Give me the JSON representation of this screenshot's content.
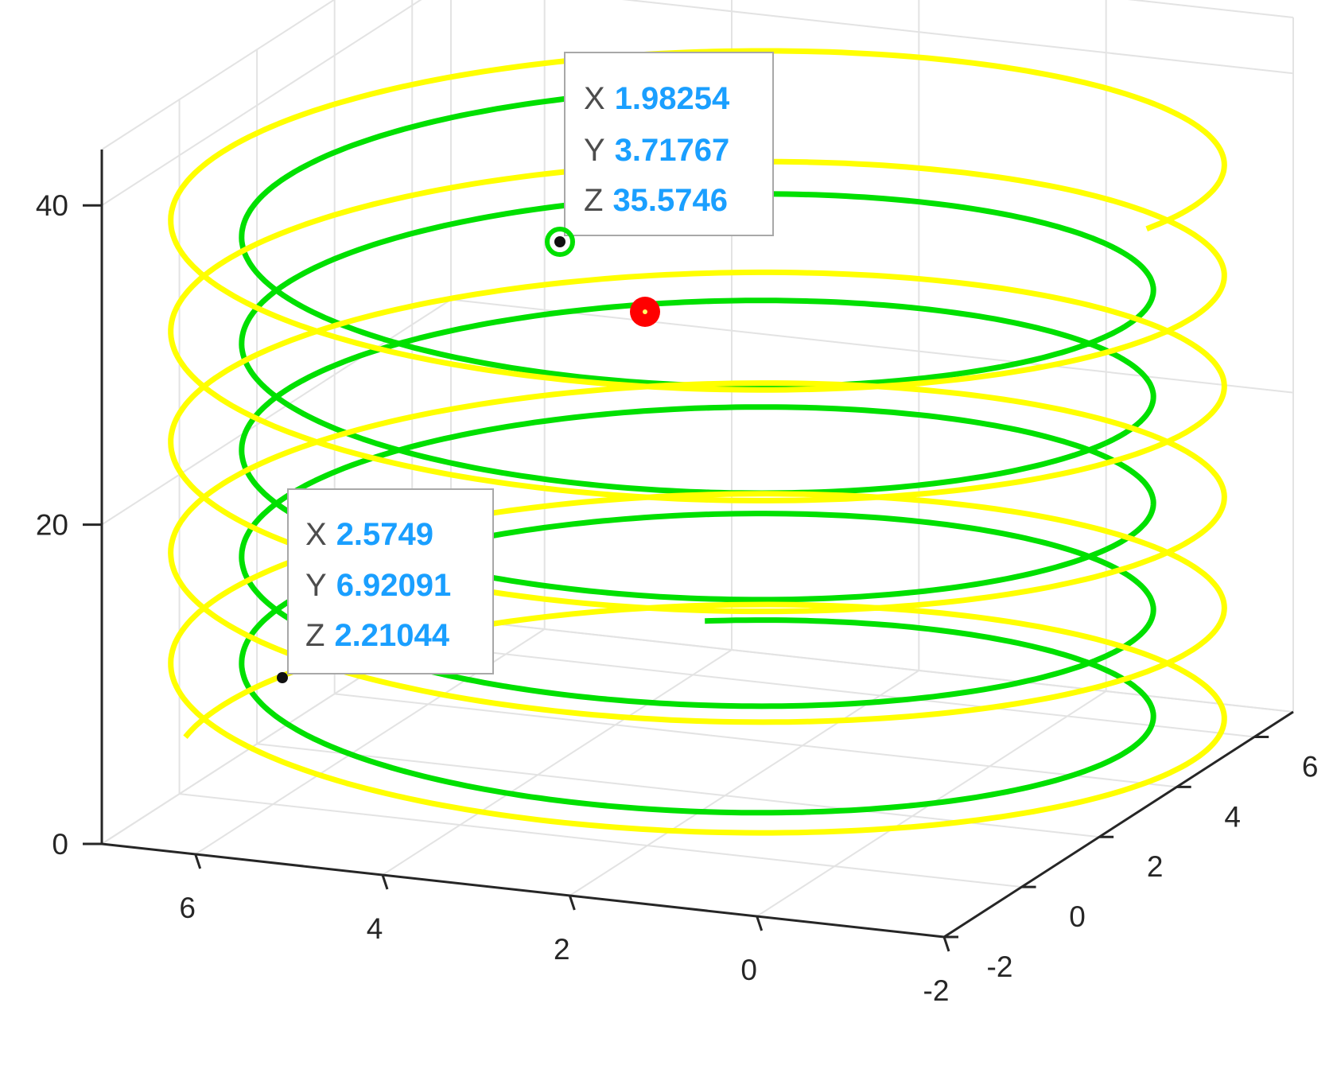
{
  "chart_data": {
    "type": "line3d",
    "title": "",
    "xlabel": "",
    "ylabel": "",
    "zlabel": "",
    "xlim": [
      -2,
      7
    ],
    "ylim": [
      -2,
      7
    ],
    "zlim": [
      0,
      40
    ],
    "x_ticks": [
      "6",
      "4",
      "2",
      "0",
      "-2"
    ],
    "y_ticks": [
      "-2",
      "0",
      "2",
      "4",
      "6"
    ],
    "z_ticks": [
      "0",
      "20",
      "40"
    ],
    "grid": true,
    "series": [
      {
        "color": "#00e000",
        "helix": {
          "center_x": 2.5,
          "center_y": 2.5,
          "radius": 4.5,
          "turns": 5,
          "z_start": 2.2,
          "z_end": 35.57
        }
      },
      {
        "color": "#ffff00",
        "helix": {
          "center_x": 2.5,
          "center_y": 2.5,
          "radius": 5.2,
          "turns": 5.55,
          "z_start": 0.5,
          "z_end": 39
        }
      }
    ],
    "marker": {
      "color": "#ff0000",
      "x": 3.05,
      "y": 6.9,
      "z": 35.5
    },
    "datatips": [
      {
        "x_label": "X",
        "x": "1.98254",
        "y_label": "Y",
        "y": "3.71767",
        "z_label": "Z",
        "z": "35.5746"
      },
      {
        "x_label": "X",
        "x": "2.5749",
        "y_label": "Y",
        "y": "6.92091",
        "z_label": "Z",
        "z": "2.21044"
      }
    ]
  }
}
